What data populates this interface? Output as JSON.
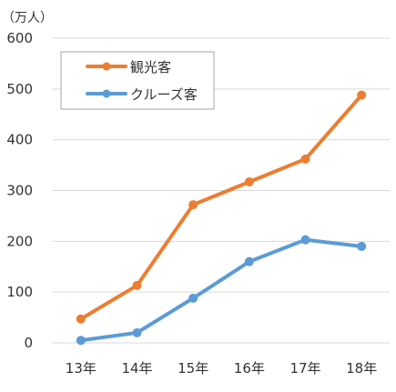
{
  "chart_data": {
    "type": "line",
    "unit_label": "（万人）",
    "categories": [
      "13年",
      "14年",
      "15年",
      "16年",
      "17年",
      "18年"
    ],
    "ylim": [
      0,
      600
    ],
    "yticks": [
      0,
      100,
      200,
      300,
      400,
      500,
      600
    ],
    "grid": true,
    "legend_position": "top-left",
    "series": [
      {
        "name": "観光客",
        "color": "#ED7D31",
        "values": [
          47,
          113,
          272,
          317,
          362,
          488
        ]
      },
      {
        "name": "クルーズ客",
        "color": "#5B9BD5",
        "values": [
          5,
          20,
          88,
          160,
          203,
          190
        ]
      }
    ]
  }
}
